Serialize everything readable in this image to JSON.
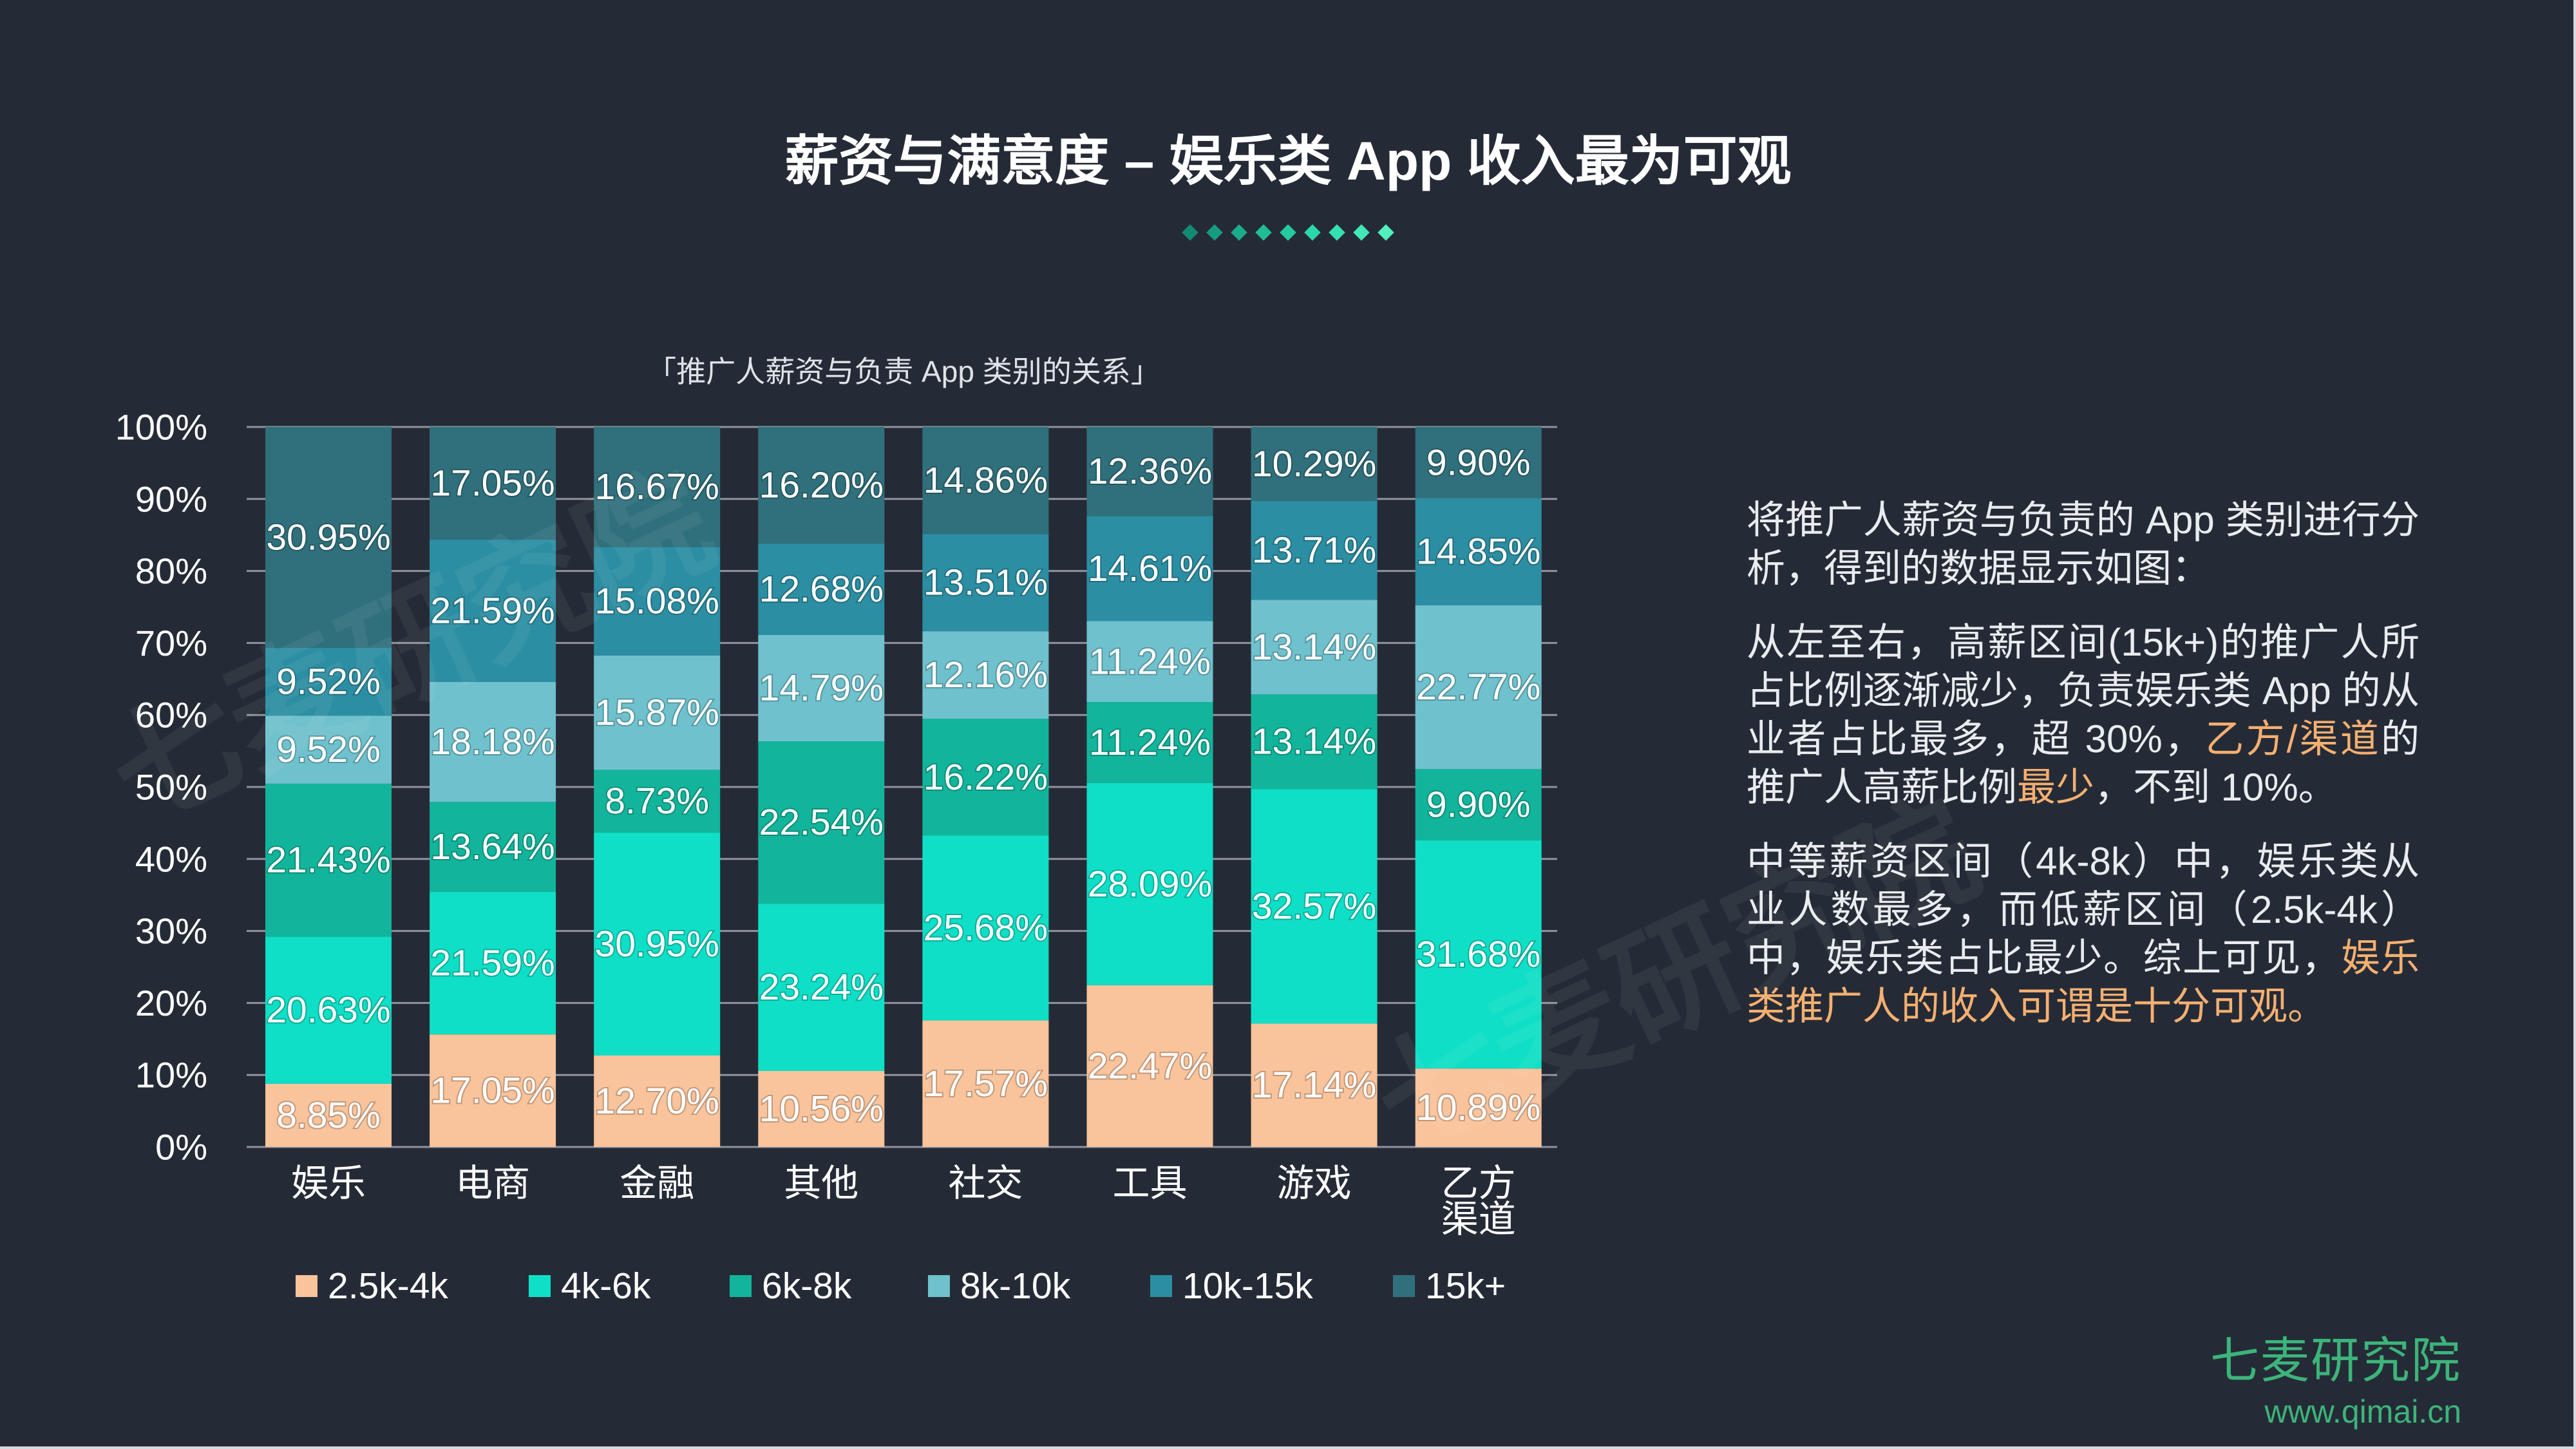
{
  "header": {
    "title": "薪资与满意度 – 娱乐类 App 收入最为可观"
  },
  "colors": {
    "background": "#252b36",
    "highlight": "#f5b071",
    "brand_green": "#3cb47a"
  },
  "chart_data": {
    "type": "bar",
    "stacked": "percent",
    "title": "「推广人薪资与负责 App 类别的关系」",
    "categories": [
      "娱乐",
      "电商",
      "金融",
      "其他",
      "社交",
      "工具",
      "游戏",
      "乙方\n渠道"
    ],
    "y_ticks": [
      "0%",
      "10%",
      "20%",
      "30%",
      "40%",
      "50%",
      "60%",
      "70%",
      "80%",
      "90%",
      "100%"
    ],
    "ylim": [
      0,
      100
    ],
    "grid": true,
    "legend": "bottom",
    "series": [
      {
        "name": "2.5k-4k",
        "color": "#f9c39b",
        "values": [
          8.85,
          17.05,
          12.7,
          10.56,
          17.57,
          22.47,
          17.14,
          10.89
        ]
      },
      {
        "name": "4k-6k",
        "color": "#0fdfc6",
        "values": [
          20.63,
          21.59,
          30.95,
          23.24,
          25.68,
          28.09,
          32.57,
          31.68
        ]
      },
      {
        "name": "6k-8k",
        "color": "#12b59b",
        "values": [
          21.43,
          13.64,
          8.73,
          22.54,
          16.22,
          11.24,
          13.14,
          9.9
        ]
      },
      {
        "name": "8k-10k",
        "color": "#6fc1cd",
        "values": [
          9.52,
          18.18,
          15.87,
          14.79,
          12.16,
          11.24,
          13.14,
          22.77
        ]
      },
      {
        "name": "10k-15k",
        "color": "#2c8ea2",
        "values": [
          9.52,
          21.59,
          15.08,
          12.68,
          13.51,
          14.61,
          13.71,
          14.85
        ]
      },
      {
        "name": "15k+",
        "color": "#30707c",
        "values": [
          30.95,
          17.05,
          16.67,
          16.2,
          14.86,
          12.36,
          10.29,
          9.9
        ]
      }
    ]
  },
  "sidebar": {
    "p1": "将推广人薪资与负责的 App 类别进行分析，得到的数据显示如图：",
    "p2": [
      "从左至右，高薪区间(15k+)的推广人所占比例逐渐减少，负责娱乐类 App 的从业者占比最多，超 30%，",
      "乙方/渠道",
      "的推广人高薪比例",
      "最少",
      "，不到 10%。"
    ],
    "p3": [
      "中等薪资区间（4k-8k）中，娱乐类从业人数最多，而低薪区间（2.5k-4k）中，娱乐类占比最少。综上可见，",
      "娱乐类推广人的收入可谓是十分可观。"
    ]
  },
  "watermark": "七麦研究院",
  "logo": {
    "name": "七麦研究院",
    "url": "www.qimai.cn"
  }
}
